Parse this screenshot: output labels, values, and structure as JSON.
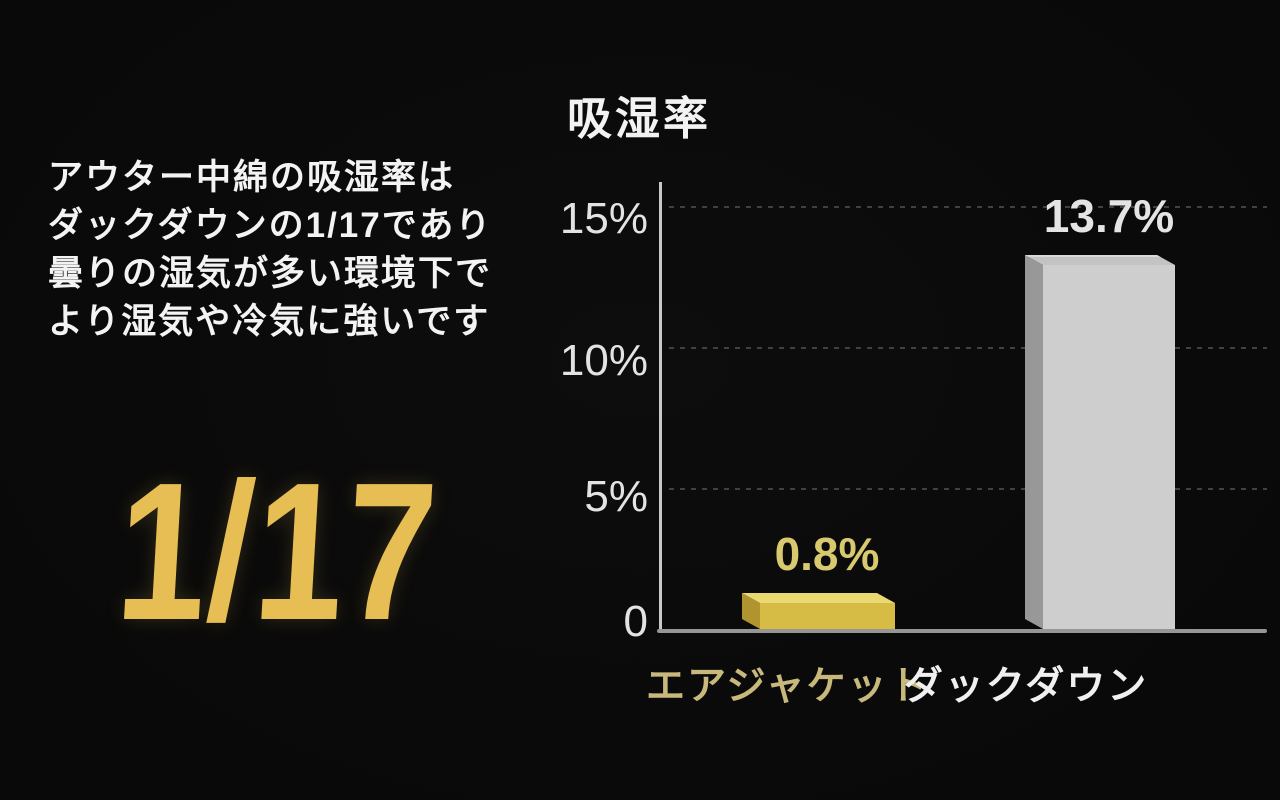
{
  "colors": {
    "background": "#0a0a0a",
    "highlight_gold": "#e6be53",
    "air_jacket_bar": "#d6bb45",
    "duck_down_bar": "#cecece",
    "axis_line": "#c9c9c9",
    "baseline": "#969696",
    "gridline": "#414141",
    "text_white": "#f3f3f3",
    "air_jacket_label_gold": "#c9b87b"
  },
  "left_panel": {
    "description_lines": [
      "アウター中綿の吸湿率は",
      "ダックダウンの1/17であり",
      "曇りの湿気が多い環境下で",
      "より湿気や冷気に強いです"
    ],
    "highlight_value": "1/17"
  },
  "chart_data": {
    "type": "bar",
    "title": "吸湿率",
    "categories": [
      "エアジャケット",
      "ダックダウン"
    ],
    "values": [
      0.8,
      13.7
    ],
    "value_labels": [
      "0.8%",
      "13.7%"
    ],
    "bar_colors": [
      "#d6bb45",
      "#cecece"
    ],
    "ylim": [
      0,
      15
    ],
    "yticks": [
      0,
      5,
      10,
      15
    ],
    "ytick_labels": [
      "0",
      "5%",
      "10%",
      "15%"
    ],
    "xlabel": "",
    "ylabel": "",
    "grid": "horizontal-dotted",
    "legend": "none",
    "style": "3d-bars-on-dark"
  }
}
